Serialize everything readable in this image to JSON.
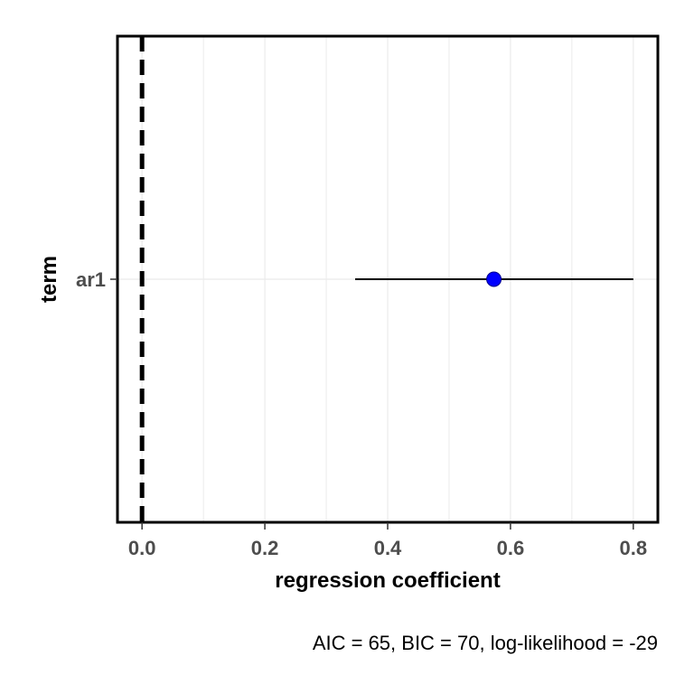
{
  "chart_data": {
    "type": "scatter",
    "subtype": "coefficient-plot",
    "title": "",
    "xlabel": "regression coefficient",
    "ylabel": "term",
    "xlim": [
      -0.04,
      0.84
    ],
    "x_ticks": [
      0.0,
      0.2,
      0.4,
      0.6,
      0.8
    ],
    "x_tick_labels": [
      "0.0",
      "0.2",
      "0.4",
      "0.6",
      "0.8"
    ],
    "categories": [
      "ar1"
    ],
    "points": [
      {
        "term": "ar1",
        "estimate": 0.573,
        "conf_low": 0.347,
        "conf_high": 0.8
      }
    ],
    "reference_line": {
      "x": 0,
      "style": "dashed"
    },
    "grid": true,
    "legend": "none",
    "caption": "AIC = 65, BIC = 70, log-likelihood = -29",
    "colors": {
      "point": "#0000ff",
      "errorbar": "#000000",
      "reference_line": "#000000",
      "grid": "#ebebeb"
    }
  }
}
